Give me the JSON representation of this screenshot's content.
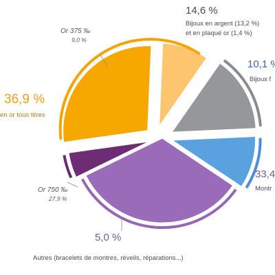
{
  "chart_data": {
    "type": "pie",
    "slices": [
      {
        "label_main": "Or 750 ‰",
        "label_sub": "27,9 %",
        "value": 27.9,
        "color": "#f5a300",
        "fill": "#f7a800",
        "group": "gold",
        "outer": false
      },
      {
        "label_main": "Or 375 ‰",
        "label_sub": "9,0 %",
        "value": 9.0,
        "color": "#fcc872",
        "fill": "#fdc66e",
        "group": "gold",
        "outer": false
      },
      {
        "label_main": "14,6 %",
        "label_sub": "Bijoux en argent (13,2 %)",
        "label_sub2": "et en plaqué or (1,4 %)",
        "value": 14.6,
        "color": "#8a8b8f",
        "fill": "#96979b",
        "group": "silver",
        "outer": true
      },
      {
        "label_main": "10,1 %",
        "label_sub": "Bijoux f",
        "value": 10.1,
        "color": "#4c8ed6",
        "fill": "#5aa1e0",
        "group": "fantasy",
        "outer": true
      },
      {
        "label_main": "33,4 %",
        "label_sub": "Montr",
        "value": 33.4,
        "color": "#9467b4",
        "fill": "#9a6bb8",
        "group": "watches",
        "outer": true
      },
      {
        "label_main": "5,0 %",
        "label_sub": "Autres (bracelets de montres, réveils, réparations...)",
        "value": 5.0,
        "color": "#6a2a73",
        "fill": "#6d2c74",
        "group": "other",
        "outer": true
      }
    ],
    "gold_group": {
      "label_main": "36,9 %",
      "label_sub": "en or tous titres"
    }
  }
}
